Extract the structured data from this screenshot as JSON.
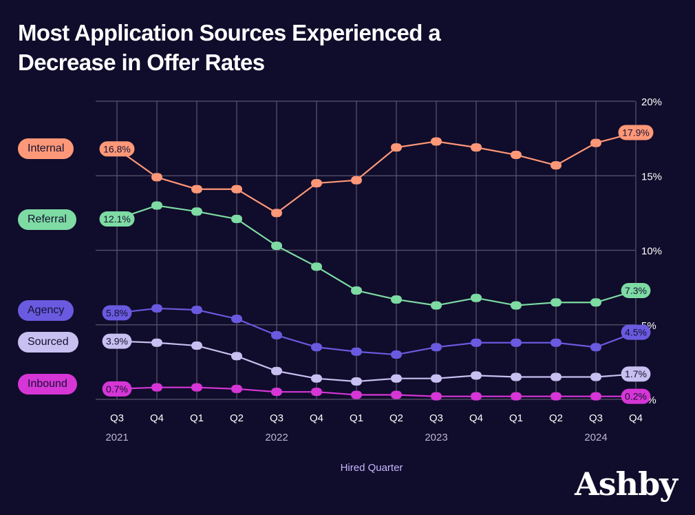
{
  "title": "Most Application Sources Experienced a Decrease in Offer Rates",
  "brand": "Ashby",
  "colors": {
    "background": "#100c2b",
    "grid": "#5a5670",
    "text": "#ffffff",
    "xlabel": "#c4b8ff"
  },
  "chart_data": {
    "type": "line",
    "title": "Most Application Sources Experienced a Decrease in Offer Rates",
    "xlabel": "Hired Quarter",
    "ylabel": "",
    "x": [
      "Q3",
      "Q4",
      "Q1",
      "Q2",
      "Q3",
      "Q4",
      "Q1",
      "Q2",
      "Q3",
      "Q4",
      "Q1",
      "Q2",
      "Q3",
      "Q4"
    ],
    "years": [
      {
        "label": "2021",
        "index": 0
      },
      {
        "label": "2022",
        "index": 4
      },
      {
        "label": "2023",
        "index": 8
      },
      {
        "label": "2024",
        "index": 12
      }
    ],
    "ylim": [
      0,
      20
    ],
    "yticks": [
      0,
      5,
      10,
      15,
      20
    ],
    "ytick_labels": [
      "0%",
      "5%",
      "10%",
      "15%",
      "20%"
    ],
    "grid": true,
    "legend_position": "left",
    "series": [
      {
        "name": "Internal",
        "color": "#ff9878",
        "values": [
          16.8,
          14.9,
          14.1,
          14.1,
          12.5,
          14.5,
          14.7,
          16.9,
          17.3,
          16.9,
          16.4,
          15.7,
          17.2,
          17.9
        ],
        "first_label": "16.8%",
        "last_label": "17.9%"
      },
      {
        "name": "Referral",
        "color": "#7ddba3",
        "values": [
          12.1,
          13.0,
          12.6,
          12.1,
          10.3,
          8.9,
          7.3,
          6.7,
          6.3,
          6.8,
          6.3,
          6.5,
          6.5,
          7.3
        ],
        "first_label": "12.1%",
        "last_label": "7.3%"
      },
      {
        "name": "Agency",
        "color": "#6a5ae0",
        "values": [
          5.8,
          6.1,
          6.0,
          5.4,
          4.3,
          3.5,
          3.2,
          3.0,
          3.5,
          3.8,
          3.8,
          3.8,
          3.5,
          4.5
        ],
        "first_label": "5.8%",
        "last_label": "4.5%"
      },
      {
        "name": "Sourced",
        "color": "#c8c0f0",
        "values": [
          3.9,
          3.8,
          3.6,
          2.9,
          1.9,
          1.4,
          1.2,
          1.4,
          1.4,
          1.6,
          1.5,
          1.5,
          1.5,
          1.7
        ],
        "first_label": "3.9%",
        "last_label": "1.7%"
      },
      {
        "name": "Inbound",
        "color": "#d636d6",
        "values": [
          0.7,
          0.8,
          0.8,
          0.7,
          0.5,
          0.5,
          0.3,
          0.3,
          0.2,
          0.2,
          0.2,
          0.2,
          0.2,
          0.2
        ],
        "first_label": "0.7%",
        "last_label": "0.2%"
      }
    ]
  }
}
